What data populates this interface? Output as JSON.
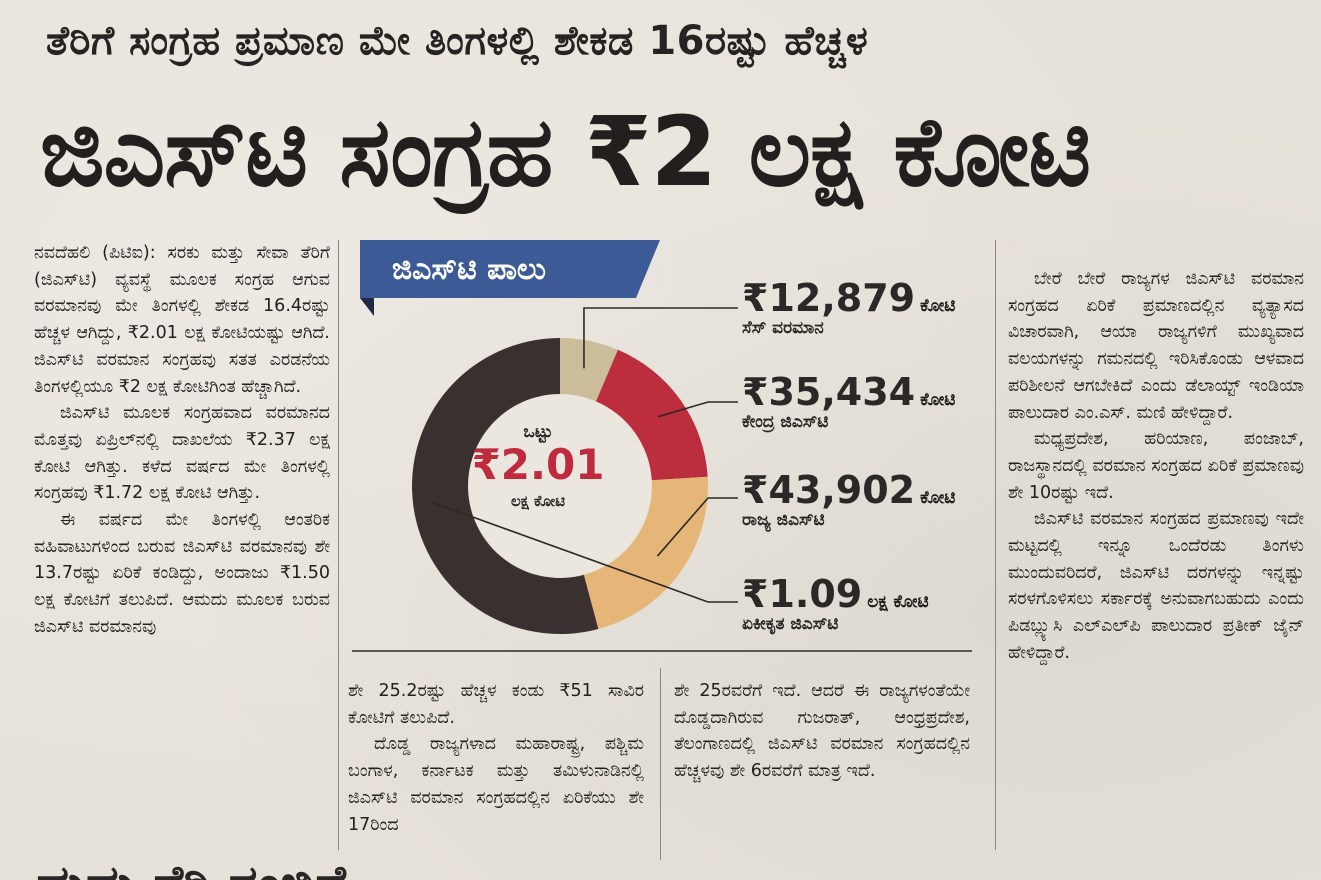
{
  "kicker": "ತೆರಿಗೆ ಸಂಗ್ರಹ ಪ್ರಮಾಣ ಮೇ ತಿಂಗಳಲ್ಲಿ ಶೇಕಡ 16ರಷ್ಟು ಹೆಚ್ಚಳ",
  "headline": "ಜಿಎಸ್‌ಟಿ ಸಂಗ್ರಹ ₹2 ಲಕ್ಷ ಕೋಟಿ",
  "column1": [
    "ನವದೆಹಲಿ (ಪಿಟಿಐ): ಸರಕು ಮತ್ತು ಸೇವಾ ತೆರಿಗೆ (ಜಿಎಸ್‌ಟಿ) ವ್ಯವಸ್ಥೆ ಮೂಲಕ ಸಂಗ್ರಹ ಆಗುವ ವರಮಾನವು ಮೇ ತಿಂಗಳಲ್ಲಿ ಶೇಕಡ 16.4ರಷ್ಟು ಹೆಚ್ಚಳ ಆಗಿದ್ದು, ₹2.01 ಲಕ್ಷ ಕೋಟಿಯಷ್ಟು ಆಗಿದೆ. ಜಿಎಸ್‌ಟಿ ವರಮಾನ ಸಂಗ್ರಹವು ಸತತ ಎರಡನೆಯ ತಿಂಗಳಲ್ಲಿಯೂ ₹2 ಲಕ್ಷ ಕೋಟಿಗಿಂತ ಹೆಚ್ಚಾಗಿದೆ.",
    "ಜಿಎಸ್‌ಟಿ ಮೂಲಕ ಸಂಗ್ರಹವಾದ ವರಮಾನದ ಮೊತ್ತವು ಏಪ್ರಿಲ್‌ನಲ್ಲಿ ದಾಖಲೆಯ ₹2.37 ಲಕ್ಷ ಕೋಟಿ ಆಗಿತ್ತು. ಕಳೆದ ವರ್ಷದ ಮೇ ತಿಂಗಳಲ್ಲಿ ಸಂಗ್ರಹವು ₹1.72 ಲಕ್ಷ ಕೋಟಿ ಆಗಿತ್ತು.",
    "ಈ ವರ್ಷದ ಮೇ ತಿಂಗಳಲ್ಲಿ ಆಂತರಿಕ ವಹಿವಾಟುಗಳಿಂದ ಬರುವ ಜಿಎಸ್‌ಟಿ ವರಮಾನವು ಶೇ 13.7ರಷ್ಟು ಏರಿಕೆ ಕಂಡಿದ್ದು, ಅಂದಾಜು ₹1.50 ಲಕ್ಷ ಕೋಟಿಗೆ ತಲುಪಿದೆ. ಆಮದು ಮೂಲಕ ಬರುವ ಜಿಎಸ್‌ಟಿ ವರಮಾನವು"
  ],
  "column2": [
    "ಶೇ 25.2ರಷ್ಟು ಹೆಚ್ಚಳ ಕಂಡು ₹51 ಸಾವಿರ ಕೋಟಿಗೆ ತಲುಪಿದೆ.",
    "ದೊಡ್ಡ ರಾಜ್ಯಗಳಾದ ಮಹಾರಾಷ್ಟ್ರ, ಪಶ್ಚಿಮ ಬಂಗಾಳ, ಕರ್ನಾಟಕ ಮತ್ತು ತಮಿಳುನಾಡಿನಲ್ಲಿ ಜಿಎಸ್‌ಟಿ ವರಮಾನ ಸಂಗ್ರಹದಲ್ಲಿನ ಏರಿಕೆಯು ಶೇ 17ರಿಂದ"
  ],
  "column3": [
    "ಶೇ 25ರವರೆಗೆ ಇದೆ. ಆದರೆ ಈ ರಾಜ್ಯಗಳಂತೆಯೇ ದೊಡ್ಡದಾಗಿರುವ ಗುಜರಾತ್, ಆಂಧ್ರಪ್ರದೇಶ, ತೆಲಂಗಾಣದಲ್ಲಿ ಜಿಎಸ್‌ಟಿ ವರಮಾನ ಸಂಗ್ರಹದಲ್ಲಿನ ಹೆಚ್ಚಳವು ಶೇ 6ರವರೆಗೆ ಮಾತ್ರ ಇದೆ."
  ],
  "column4": [
    "ಬೇರೆ ಬೇರೆ ರಾಜ್ಯಗಳ ಜಿಎಸ್‌ಟಿ ವರಮಾನ ಸಂಗ್ರಹದ ಏರಿಕೆ ಪ್ರಮಾಣದಲ್ಲಿನ ವ್ಯತ್ಯಾಸದ ವಿಚಾರವಾಗಿ, ಆಯಾ ರಾಜ್ಯಗಳಿಗೆ ಮುಖ್ಯವಾದ ವಲಯಗಳನ್ನು ಗಮನದಲ್ಲಿ ಇರಿಸಿಕೊಂಡು ಆಳವಾದ ಪರಿಶೀಲನೆ ಆಗಬೇಕಿದೆ ಎಂದು ಡೆಲಾಯ್ಟ್ ಇಂಡಿಯಾ ಪಾಲುದಾರ ಎಂ.ಎಸ್. ಮಣಿ ಹೇಳಿದ್ದಾರೆ.",
    "ಮಧ್ಯಪ್ರದೇಶ, ಹರಿಯಾಣ, ಪಂಜಾಬ್, ರಾಜಸ್ಥಾನದಲ್ಲಿ ವರಮಾನ ಸಂಗ್ರಹದ ಏರಿಕೆ ಪ್ರಮಾಣವು ಶೇ 10ರಷ್ಟು ಇದೆ.",
    "ಜಿಎಸ್‌ಟಿ ವರಮಾನ ಸಂಗ್ರಹದ ಪ್ರಮಾಣವು ಇದೇ ಮಟ್ಟದಲ್ಲಿ ಇನ್ನೂ ಒಂದೆರಡು ತಿಂಗಳು ಮುಂದುವರಿದರೆ, ಜಿಎಸ್‌ಟಿ ದರಗಳನ್ನು ಇನ್ನಷ್ಟು ಸರಳಗೊಳಿಸಲು ಸರ್ಕಾರಕ್ಕೆ ಅನುವಾಗಬಹುದು ಎಂದು ಪಿಡಬ್ಲ್ಯುಸಿ ಎಲ್‌ಎಲ್‌ಪಿ ಪಾಲುದಾರ ಪ್ರತೀಕ್ ಜೈನ್ ಹೇಳಿದ್ದಾರೆ."
  ],
  "graphic": {
    "banner": "ಜಿಎಸ್‌ಟಿ ಪಾಲು",
    "center_label": "ಒಟ್ಟು",
    "center_value": "₹2.01",
    "center_unit": "ಲಕ್ಷ ಕೋಟಿ"
  },
  "chart_data": {
    "type": "pie",
    "variant": "donut",
    "total": 2.01,
    "total_unit": "ಲಕ್ಷ ಕೋಟಿ",
    "slices": [
      {
        "amount": "₹12,879",
        "unit": "ಕೋಟಿ",
        "label": "ಸೆಸ್ ವರಮಾನ",
        "value": 12879,
        "color": "#cbbd99"
      },
      {
        "amount": "₹35,434",
        "unit": "ಕೋಟಿ",
        "label": "ಕೇಂದ್ರ ಜಿಎಸ್‌ಟಿ",
        "value": 35434,
        "color": "#bc2d3e"
      },
      {
        "amount": "₹43,902",
        "unit": "ಕೋಟಿ",
        "label": "ರಾಜ್ಯ ಜಿಎಸ್‌ಟಿ",
        "value": 43902,
        "color": "#e6b678"
      },
      {
        "amount": "₹1.09",
        "unit": "ಲಕ್ಷ ಕೋಟಿ",
        "label": "ಏಕೀಕೃತ ಜಿಎಸ್‌ಟಿ",
        "value": 109000,
        "color": "#3a3030"
      }
    ]
  },
  "bottom_fragment": "ಡುಡು ತೆರಿ ನಂಬಿಗೆ"
}
